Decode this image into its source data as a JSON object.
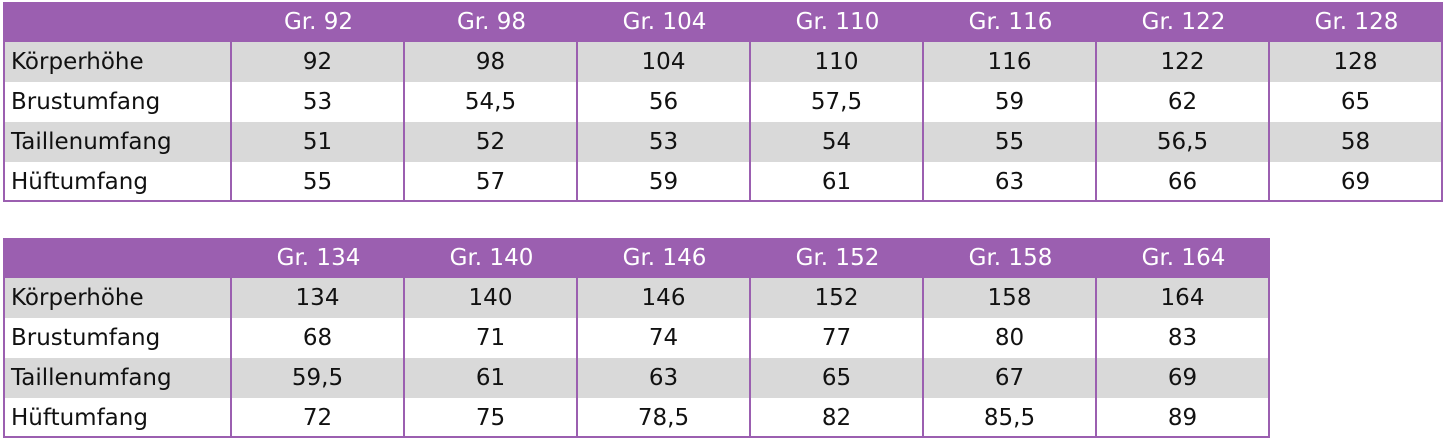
{
  "tables": [
    {
      "header": [
        "Gr. 92",
        "Gr. 98",
        "Gr. 104",
        "Gr. 110",
        "Gr. 116",
        "Gr. 122",
        "Gr. 128"
      ],
      "rows": [
        {
          "label": "Körperhöhe",
          "cells": [
            "92",
            "98",
            "104",
            "110",
            "116",
            "122",
            "128"
          ]
        },
        {
          "label": "Brustumfang",
          "cells": [
            "53",
            "54,5",
            "56",
            "57,5",
            "59",
            "62",
            "65"
          ]
        },
        {
          "label": "Taillenumfang",
          "cells": [
            "51",
            "52",
            "53",
            "54",
            "55",
            "56,5",
            "58"
          ]
        },
        {
          "label": "Hüftumfang",
          "cells": [
            "55",
            "57",
            "59",
            "61",
            "63",
            "66",
            "69"
          ]
        }
      ]
    },
    {
      "header": [
        "Gr. 134",
        "Gr. 140",
        "Gr. 146",
        "Gr. 152",
        "Gr. 158",
        "Gr. 164"
      ],
      "rows": [
        {
          "label": "Körperhöhe",
          "cells": [
            "134",
            "140",
            "146",
            "152",
            "158",
            "164"
          ]
        },
        {
          "label": "Brustumfang",
          "cells": [
            "68",
            "71",
            "74",
            "77",
            "80",
            "83"
          ]
        },
        {
          "label": "Taillenumfang",
          "cells": [
            "59,5",
            "61",
            "63",
            "65",
            "67",
            "69"
          ]
        },
        {
          "label": "Hüftumfang",
          "cells": [
            "72",
            "75",
            "78,5",
            "82",
            "85,5",
            "89"
          ]
        }
      ]
    }
  ]
}
